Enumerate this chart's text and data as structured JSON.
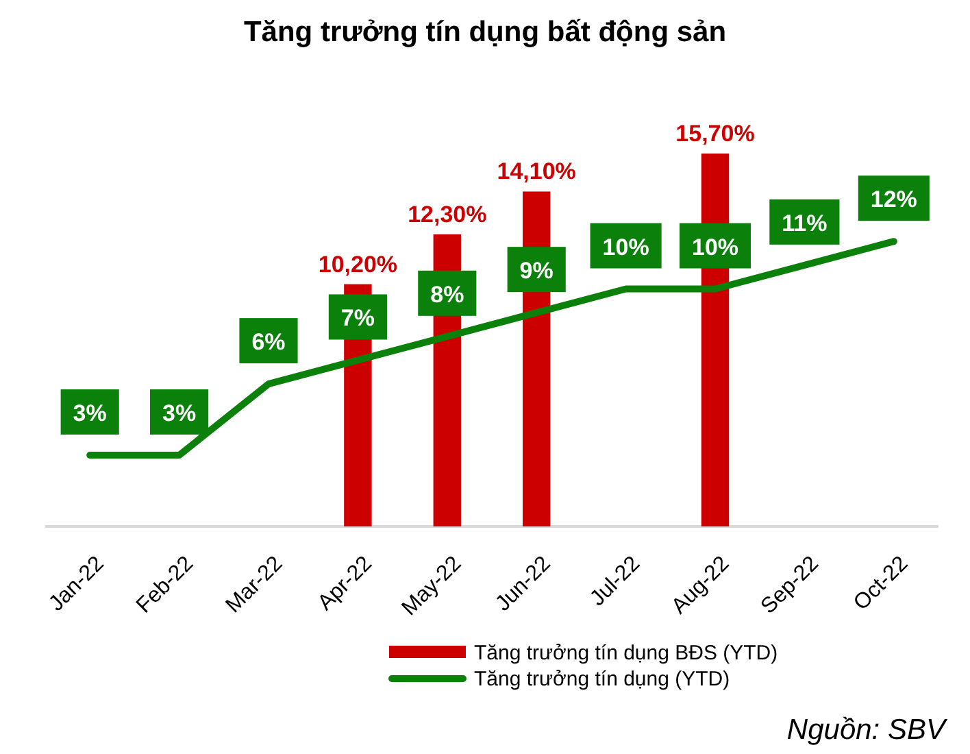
{
  "chart_data": {
    "type": "bar",
    "title": "Tăng trưởng tín dụng bất động sản",
    "categories": [
      "Jan-22",
      "Feb-22",
      "Mar-22",
      "Apr-22",
      "May-22",
      "Jun-22",
      "Jul-22",
      "Aug-22",
      "Sep-22",
      "Oct-22"
    ],
    "series": [
      {
        "name": "Tăng trưởng tín dụng BĐS (YTD)",
        "color": "#cc0000",
        "values": [
          null,
          null,
          null,
          10.2,
          12.3,
          14.1,
          null,
          15.7,
          null,
          null
        ],
        "value_labels": [
          null,
          null,
          null,
          "10,20%",
          "12,30%",
          "14,10%",
          null,
          "15,70%",
          null,
          null
        ]
      },
      {
        "name": "Tăng trưởng tín dụng (YTD)",
        "type": "line",
        "color": "#0b800b",
        "values": [
          3,
          3,
          6,
          7,
          8,
          9,
          10,
          10,
          11,
          12
        ],
        "value_labels": [
          "3%",
          "3%",
          "6%",
          "7%",
          "8%",
          "9%",
          "10%",
          "10%",
          "11%",
          "12%"
        ]
      }
    ],
    "tick_labels": "x",
    "legend": "bottom",
    "line_style": "solid",
    "annotations": [
      "Nguồn: SBV"
    ]
  }
}
